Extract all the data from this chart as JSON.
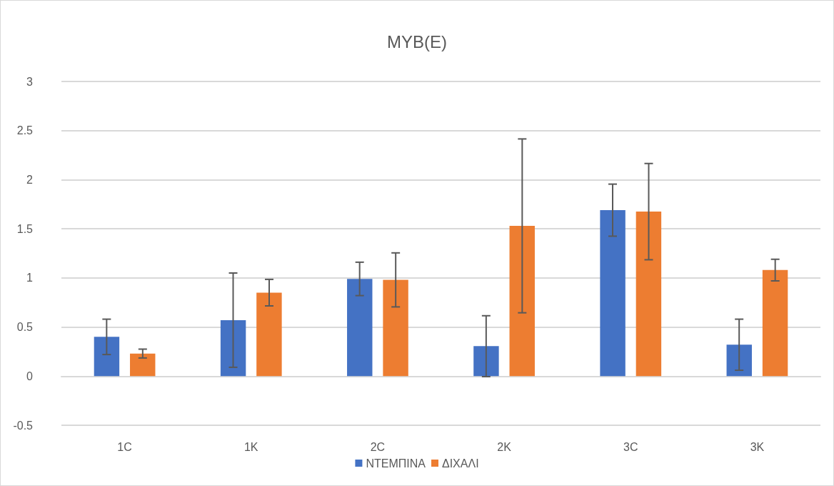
{
  "chart_data": {
    "type": "bar",
    "title": "MYB(E)",
    "categories": [
      "1C",
      "1K",
      "2C",
      "2K",
      "3C",
      "3K"
    ],
    "series": [
      {
        "name": "ΝΤΕΜΠΙΝΑ",
        "color": "#4472c4",
        "values": [
          0.4,
          0.57,
          0.99,
          0.305,
          1.69,
          0.32
        ],
        "errors": [
          0.18,
          0.48,
          0.17,
          0.31,
          0.265,
          0.26
        ]
      },
      {
        "name": "ΔΙΧΑΛΙ",
        "color": "#ed7d31",
        "values": [
          0.23,
          0.85,
          0.98,
          1.53,
          1.675,
          1.08
        ],
        "errors": [
          0.045,
          0.135,
          0.275,
          0.885,
          0.49,
          0.11
        ]
      }
    ],
    "ylim": [
      -0.5,
      3
    ],
    "yticks": [
      -0.5,
      0,
      0.5,
      1,
      1.5,
      2,
      2.5,
      3
    ],
    "grid": "y",
    "legend": "bottom"
  }
}
